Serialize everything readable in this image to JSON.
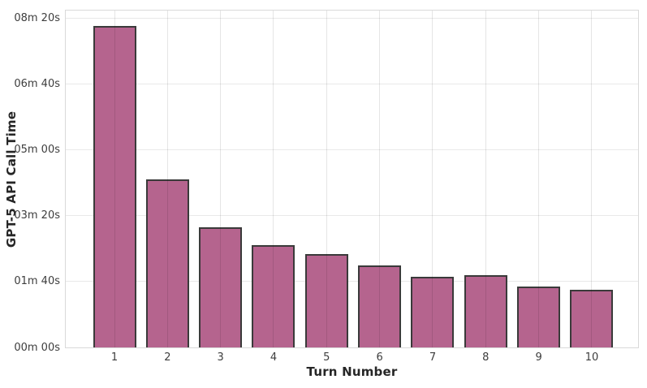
{
  "figure": {
    "background": "#ffffff"
  },
  "chart_data": {
    "type": "bar",
    "title": "",
    "xlabel": "Turn Number",
    "ylabel": "GPT-5 API Call Time",
    "categories": [
      "1",
      "2",
      "3",
      "4",
      "5",
      "6",
      "7",
      "8",
      "9",
      "10"
    ],
    "values": [
      488,
      255,
      182,
      155,
      142,
      125,
      107,
      110,
      92,
      87
    ],
    "values_unit": "seconds",
    "ylim": [
      0,
      512
    ],
    "y_ticks": [
      {
        "value": 0,
        "label": "00m 00s"
      },
      {
        "value": 100,
        "label": "01m 40s"
      },
      {
        "value": 200,
        "label": "03m 20s"
      },
      {
        "value": 300,
        "label": "05m 00s"
      },
      {
        "value": 400,
        "label": "06m 40s"
      },
      {
        "value": 500,
        "label": "08m 20s"
      }
    ],
    "grid": true,
    "legend": null,
    "colors": {
      "bar_fill": "#b5648e",
      "bar_edge": "#3a3a3a",
      "h_grid_line": "#e9e9e9",
      "v_grid_line_rgba": "rgba(0,0,0,0.10)",
      "spine": "#d9d9d9",
      "tick_label": "#3d3d3d",
      "axis_label": "#262626"
    }
  }
}
